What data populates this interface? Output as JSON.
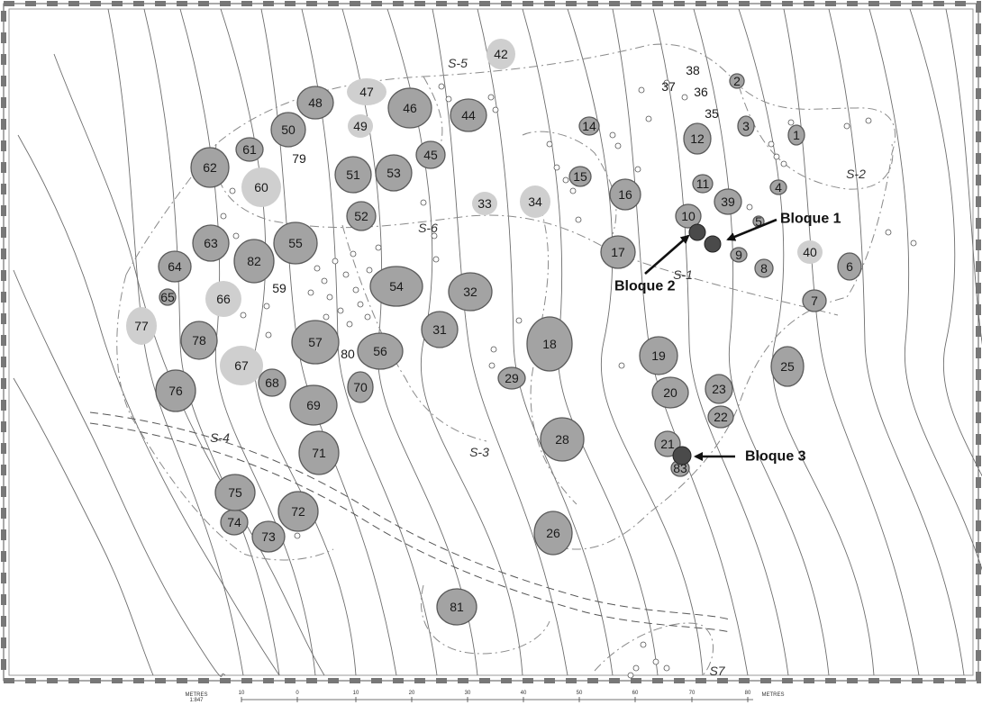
{
  "map": {
    "sector_labels": [
      "S-1",
      "S-2",
      "S-3",
      "S-4",
      "S-5",
      "S-6",
      "S7"
    ],
    "mounds": [
      {
        "id": "1"
      },
      {
        "id": "2"
      },
      {
        "id": "3"
      },
      {
        "id": "4"
      },
      {
        "id": "5"
      },
      {
        "id": "6"
      },
      {
        "id": "7"
      },
      {
        "id": "8"
      },
      {
        "id": "9"
      },
      {
        "id": "10"
      },
      {
        "id": "11"
      },
      {
        "id": "12"
      },
      {
        "id": "14"
      },
      {
        "id": "15"
      },
      {
        "id": "16"
      },
      {
        "id": "17"
      },
      {
        "id": "18"
      },
      {
        "id": "19"
      },
      {
        "id": "20"
      },
      {
        "id": "21"
      },
      {
        "id": "22"
      },
      {
        "id": "23"
      },
      {
        "id": "25"
      },
      {
        "id": "26"
      },
      {
        "id": "28"
      },
      {
        "id": "29"
      },
      {
        "id": "31"
      },
      {
        "id": "32"
      },
      {
        "id": "33"
      },
      {
        "id": "34"
      },
      {
        "id": "35"
      },
      {
        "id": "36"
      },
      {
        "id": "37"
      },
      {
        "id": "38"
      },
      {
        "id": "39"
      },
      {
        "id": "40"
      },
      {
        "id": "42"
      },
      {
        "id": "44"
      },
      {
        "id": "45"
      },
      {
        "id": "46"
      },
      {
        "id": "47"
      },
      {
        "id": "48"
      },
      {
        "id": "49"
      },
      {
        "id": "50"
      },
      {
        "id": "51"
      },
      {
        "id": "52"
      },
      {
        "id": "53"
      },
      {
        "id": "54"
      },
      {
        "id": "55"
      },
      {
        "id": "56"
      },
      {
        "id": "57"
      },
      {
        "id": "59"
      },
      {
        "id": "60"
      },
      {
        "id": "61"
      },
      {
        "id": "62"
      },
      {
        "id": "63"
      },
      {
        "id": "64"
      },
      {
        "id": "65"
      },
      {
        "id": "66"
      },
      {
        "id": "67"
      },
      {
        "id": "68"
      },
      {
        "id": "69"
      },
      {
        "id": "70"
      },
      {
        "id": "71"
      },
      {
        "id": "72"
      },
      {
        "id": "73"
      },
      {
        "id": "74"
      },
      {
        "id": "75"
      },
      {
        "id": "76"
      },
      {
        "id": "77"
      },
      {
        "id": "78"
      },
      {
        "id": "79"
      },
      {
        "id": "80"
      },
      {
        "id": "81"
      },
      {
        "id": "82"
      },
      {
        "id": "83"
      }
    ],
    "callouts": [
      {
        "label": "Bloque 1"
      },
      {
        "label": "Bloque 2"
      },
      {
        "label": "Bloque 3"
      }
    ],
    "scale_bar": {
      "unit_left": "METRES",
      "ratio": "1:847",
      "unit_right": "METRES",
      "ticks": [
        "10",
        "0",
        "10",
        "20",
        "30",
        "40",
        "50",
        "60",
        "70",
        "80"
      ]
    }
  }
}
